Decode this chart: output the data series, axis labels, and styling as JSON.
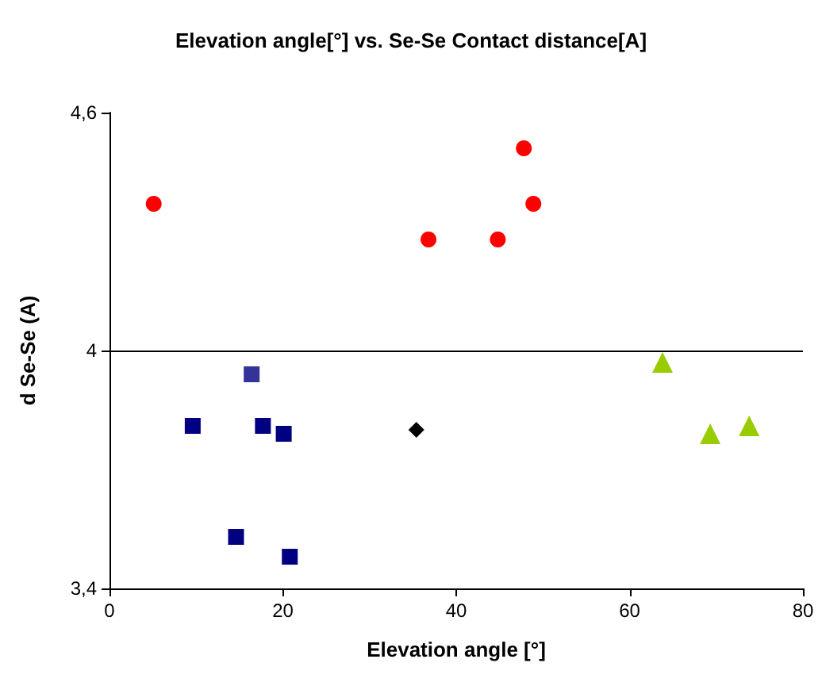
{
  "chart_data": {
    "type": "scatter",
    "title": "Elevation angle[°] vs. Se-Se Contact distance[A]",
    "xlabel": "Elevation angle [°]",
    "ylabel": "d Se-Se (A)",
    "series": [
      {
        "color": "#ff0000",
        "marker": "circle",
        "x": [
          5.1,
          36.8,
          44.8,
          47.8,
          48.9
        ],
        "values": [
          4.37,
          4.28,
          4.28,
          4.51,
          4.37
        ]
      },
      {
        "color": "#000080",
        "marker": "square",
        "x": [
          9.6,
          17.7,
          20.1,
          14.6,
          20.8
        ],
        "values": [
          3.81,
          3.81,
          3.79,
          3.53,
          3.48
        ]
      },
      {
        "color": "#333399",
        "marker": "square",
        "x": [
          16.4
        ],
        "values": [
          3.94
        ]
      },
      {
        "color": "#000000",
        "marker": "diamond",
        "x": [
          35.4
        ],
        "values": [
          3.8
        ]
      },
      {
        "color": "#99cc00",
        "marker": "triangle",
        "x": [
          63.8,
          69.3,
          73.8
        ],
        "values": [
          3.97,
          3.79,
          3.81
        ]
      }
    ],
    "xlim": [
      0,
      80
    ],
    "xticks": [
      0,
      20,
      40,
      60,
      80
    ],
    "ylim": [
      3.4,
      4.6
    ],
    "yticks": [
      {
        "value": 3.4,
        "label": "3,4"
      },
      {
        "value": 4,
        "label": "4"
      },
      {
        "value": 4.6,
        "label": "4,6"
      }
    ],
    "ref_lines": [
      {
        "axis": "y",
        "value": 4,
        "color": "#000000"
      }
    ],
    "grid": false
  }
}
